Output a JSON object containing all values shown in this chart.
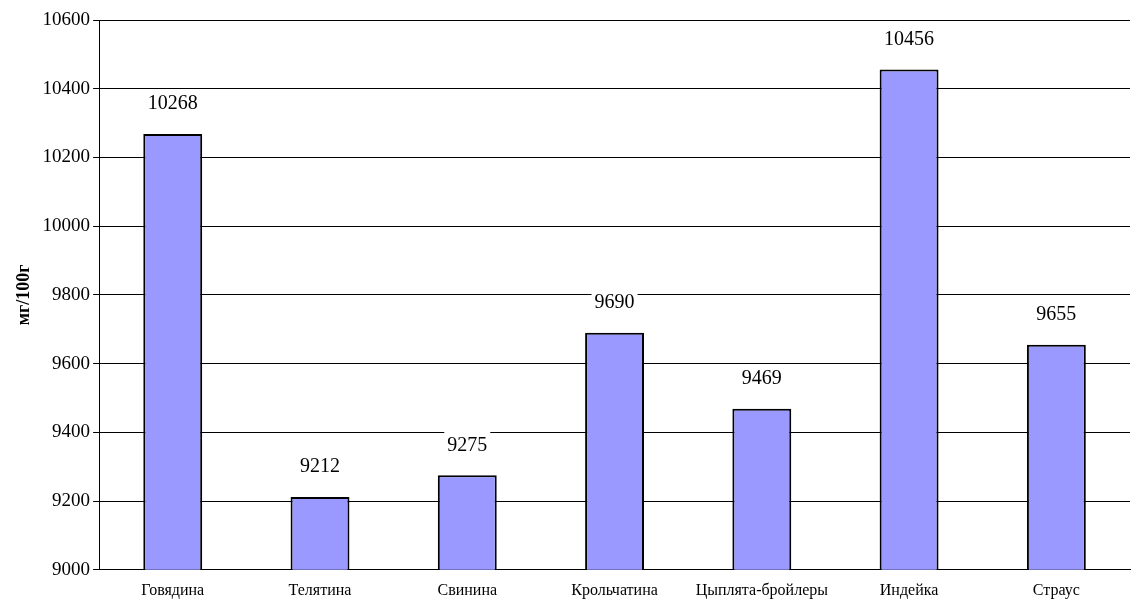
{
  "chart_data": {
    "type": "bar",
    "ylabel": "мг/100г",
    "categories": [
      "Говядина",
      "Телятина",
      "Свинина",
      "Крольчатина",
      "Цыплята-бройлеры",
      "Индейка",
      "Страус"
    ],
    "values": [
      10268,
      9212,
      9275,
      9690,
      9469,
      10456,
      9655
    ],
    "color": "#9999ff",
    "ylim": [
      9000,
      10600
    ],
    "yticks": [
      9000,
      9200,
      9400,
      9600,
      9800,
      10000,
      10200,
      10400,
      10600
    ],
    "grid": "y",
    "data_labels": true,
    "legend": false
  }
}
